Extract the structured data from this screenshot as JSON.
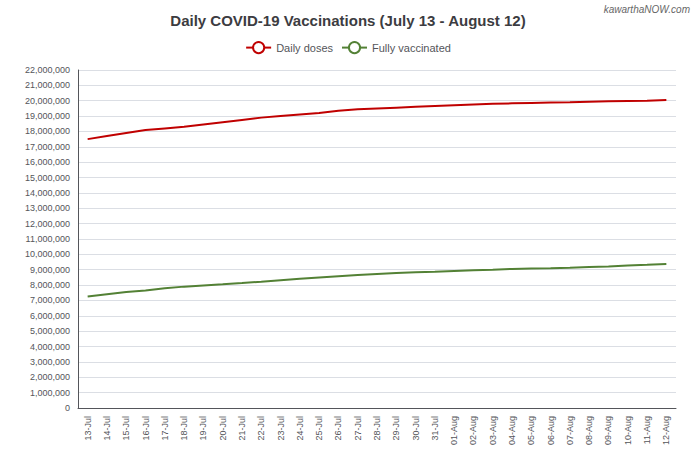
{
  "chart_data": {
    "type": "line",
    "title": "Daily COVID-19 Vaccinations (July 13 - August 12)",
    "annotations": [
      "kawarthaNOW.com"
    ],
    "categories": [
      "13-Jul",
      "14-Jul",
      "15-Jul",
      "16-Jul",
      "17-Jul",
      "18-Jul",
      "19-Jul",
      "20-Jul",
      "21-Jul",
      "22-Jul",
      "23-Jul",
      "24-Jul",
      "25-Jul",
      "26-Jul",
      "27-Jul",
      "28-Jul",
      "29-Jul",
      "30-Jul",
      "31-Jul",
      "01-Aug",
      "02-Aug",
      "03-Aug",
      "04-Aug",
      "05-Aug",
      "06-Aug",
      "07-Aug",
      "08-Aug",
      "09-Aug",
      "10-Aug",
      "11-Aug",
      "12-Aug"
    ],
    "series": [
      {
        "name": "Daily doses",
        "color": "#c00000",
        "values": [
          17500000,
          17700000,
          17900000,
          18100000,
          18200000,
          18300000,
          18450000,
          18600000,
          18750000,
          18900000,
          19000000,
          19100000,
          19200000,
          19350000,
          19450000,
          19500000,
          19550000,
          19600000,
          19650000,
          19700000,
          19750000,
          19800000,
          19830000,
          19860000,
          19880000,
          19900000,
          19930000,
          19960000,
          19980000,
          20000000,
          20050000
        ]
      },
      {
        "name": "Fully vaccinated",
        "color": "#538135",
        "values": [
          7250000,
          7400000,
          7550000,
          7650000,
          7800000,
          7900000,
          7980000,
          8050000,
          8130000,
          8220000,
          8320000,
          8420000,
          8500000,
          8580000,
          8650000,
          8720000,
          8780000,
          8830000,
          8870000,
          8920000,
          8960000,
          9000000,
          9050000,
          9080000,
          9100000,
          9130000,
          9170000,
          9210000,
          9280000,
          9320000,
          9380000
        ]
      }
    ],
    "ylim": [
      0,
      22000000
    ],
    "yticks": [
      0,
      {
        "value": 1000000,
        "label": "1,000,000"
      },
      {
        "value": 2000000,
        "label": "2,000,000"
      },
      {
        "value": 3000000,
        "label": "3,000,000"
      },
      {
        "value": 4000000,
        "label": "4,000,000"
      },
      {
        "value": 5000000,
        "label": "5,000,000"
      },
      {
        "value": 6000000,
        "label": "6,000,000"
      },
      {
        "value": 7000000,
        "label": "7,000,000"
      },
      {
        "value": 8000000,
        "label": "8,000,000"
      },
      {
        "value": 9000000,
        "label": "9,000,000"
      },
      {
        "value": 10000000,
        "label": "10,000,000"
      },
      {
        "value": 11000000,
        "label": "11,000,000"
      },
      {
        "value": 12000000,
        "label": "12,000,000"
      },
      {
        "value": 13000000,
        "label": "13,000,000"
      },
      {
        "value": 14000000,
        "label": "14,000,000"
      },
      {
        "value": 15000000,
        "label": "15,000,000"
      },
      {
        "value": 16000000,
        "label": "16,000,000"
      },
      {
        "value": 17000000,
        "label": "17,000,000"
      },
      {
        "value": 18000000,
        "label": "18,000,000"
      },
      {
        "value": 19000000,
        "label": "19,000,000"
      },
      {
        "value": 20000000,
        "label": "20,000,000"
      },
      {
        "value": 21000000,
        "label": "21,000,000"
      },
      {
        "value": 22000000,
        "label": "22,000,000"
      }
    ],
    "grid": true,
    "legend": "top"
  }
}
